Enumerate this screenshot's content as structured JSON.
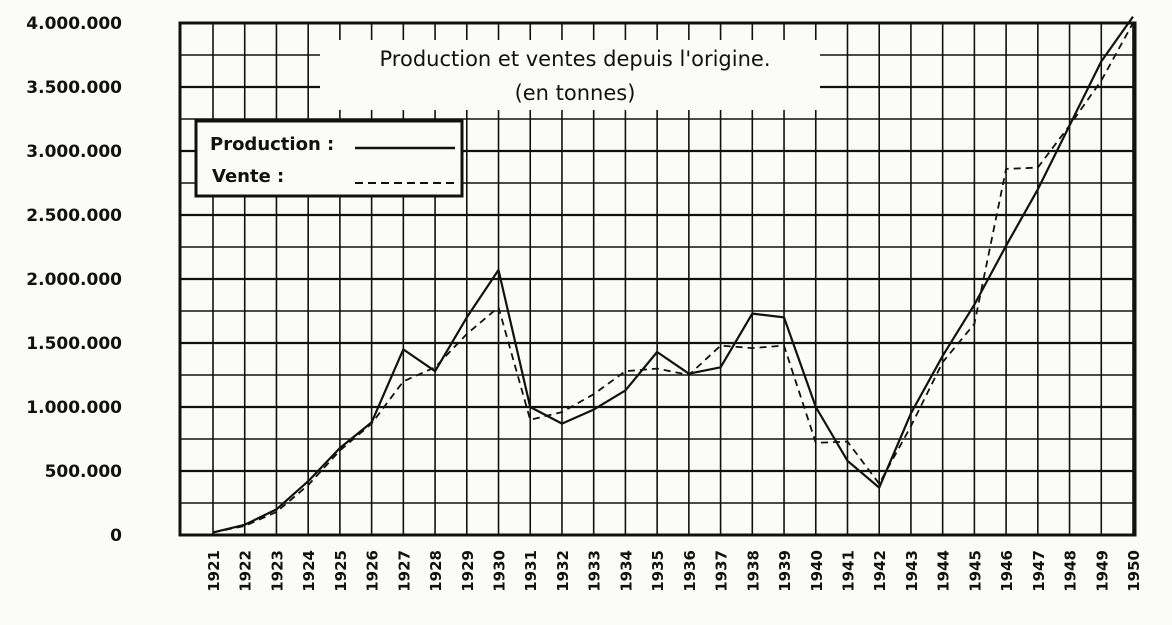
{
  "chart_data": {
    "type": "line",
    "title": "Production et ventes depuis l'origine.",
    "subtitle": "(en tonnes)",
    "x": [
      1921,
      1922,
      1923,
      1924,
      1925,
      1926,
      1927,
      1928,
      1929,
      1930,
      1931,
      1932,
      1933,
      1934,
      1935,
      1936,
      1937,
      1938,
      1939,
      1940,
      1941,
      1942,
      1943,
      1944,
      1945,
      1946,
      1947,
      1948,
      1949,
      1950
    ],
    "x_tick_labels": [
      "1921",
      "1922",
      "1923",
      "1924",
      "1925",
      "1926",
      "1927",
      "1928",
      "1929",
      "1930",
      "1931",
      "1932",
      "1933",
      "1934",
      "1935",
      "1936",
      "1937",
      "1938",
      "1939",
      "1940",
      "1941",
      "1942",
      "1943",
      "1944",
      "1945",
      "1946",
      "1947",
      "1948",
      "1949",
      "1950"
    ],
    "y_tick_labels": [
      "0",
      "500.000",
      "1.000.000",
      "1.500.000",
      "2.000.000",
      "2.500.000",
      "3.000.000",
      "3.500.000",
      "4.000.000"
    ],
    "y_ticks": [
      0,
      500000,
      1000000,
      1500000,
      2000000,
      2500000,
      3000000,
      3500000,
      4000000
    ],
    "ylim": [
      0,
      4000000
    ],
    "grid": true,
    "legend_position": "top-left",
    "series": [
      {
        "name": "Production :",
        "style": "solid",
        "values": [
          20000,
          80000,
          200000,
          420000,
          680000,
          880000,
          1450000,
          1280000,
          1700000,
          2070000,
          1000000,
          870000,
          980000,
          1130000,
          1430000,
          1260000,
          1310000,
          1730000,
          1700000,
          1000000,
          580000,
          370000,
          950000,
          1400000,
          1800000,
          2260000,
          2700000,
          3200000,
          3700000,
          4050000
        ]
      },
      {
        "name": "Vente :",
        "style": "dashed",
        "values": [
          20000,
          70000,
          180000,
          390000,
          660000,
          870000,
          1200000,
          1310000,
          1570000,
          1780000,
          900000,
          960000,
          1100000,
          1280000,
          1300000,
          1250000,
          1480000,
          1460000,
          1480000,
          720000,
          730000,
          400000,
          850000,
          1350000,
          1650000,
          2860000,
          2870000,
          3200000,
          3550000,
          4000000
        ]
      }
    ]
  }
}
